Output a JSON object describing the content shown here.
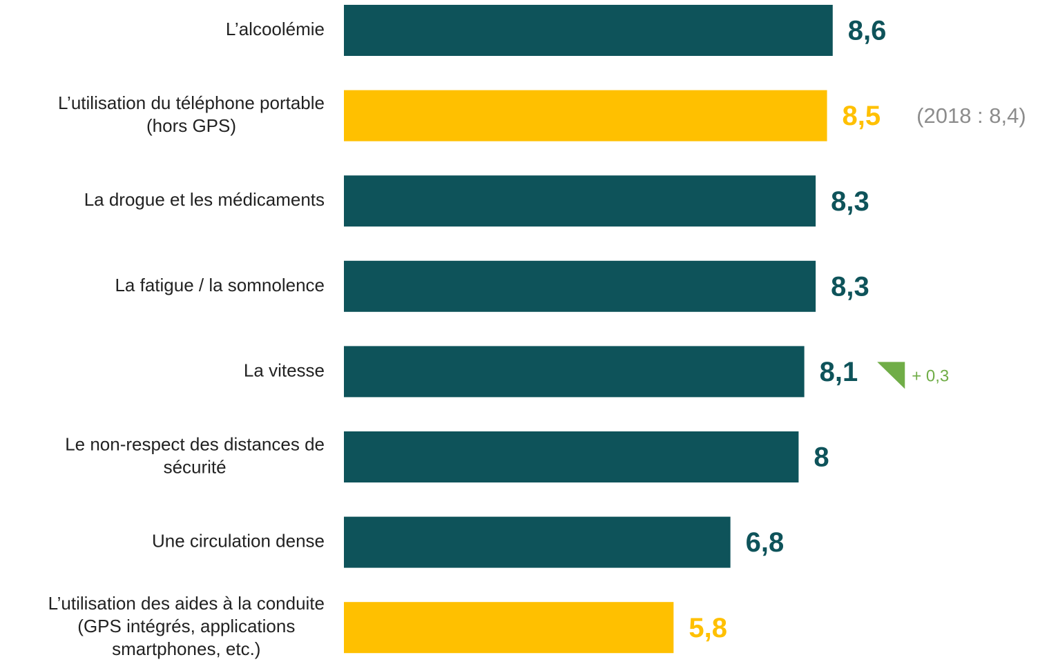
{
  "chart_data": {
    "type": "bar",
    "orientation": "horizontal",
    "categories": [
      "L’alcoolémie",
      "L’utilisation du téléphone portable\n(hors GPS)",
      "La drogue et les médicaments",
      "La fatigue / la somnolence",
      "La vitesse",
      "Le non-respect des distances de\nsécurité",
      "Une circulation dense",
      "L’utilisation des aides à la conduite\n(GPS intégrés, applications\nsmartphones, etc.)"
    ],
    "values": [
      8.6,
      8.5,
      8.3,
      8.3,
      8.1,
      8,
      6.8,
      5.8
    ],
    "value_labels": [
      "8,6",
      "8,5",
      "8,3",
      "8,3",
      "8,1",
      "8",
      "6,8",
      "5,8"
    ],
    "colors": [
      "#0e535a",
      "#ffc000",
      "#0e535a",
      "#0e535a",
      "#0e535a",
      "#0e535a",
      "#0e535a",
      "#ffc000"
    ],
    "notes": [
      null,
      "(2018 : 8,4)",
      null,
      null,
      null,
      null,
      null,
      null
    ],
    "note_color": "#8c8c8c",
    "changes": [
      null,
      null,
      null,
      null,
      {
        "value": 0.3,
        "label": "+ 0,3"
      },
      null,
      null,
      null
    ],
    "change_color": "#70ad47",
    "xlim": [
      0,
      10
    ]
  }
}
